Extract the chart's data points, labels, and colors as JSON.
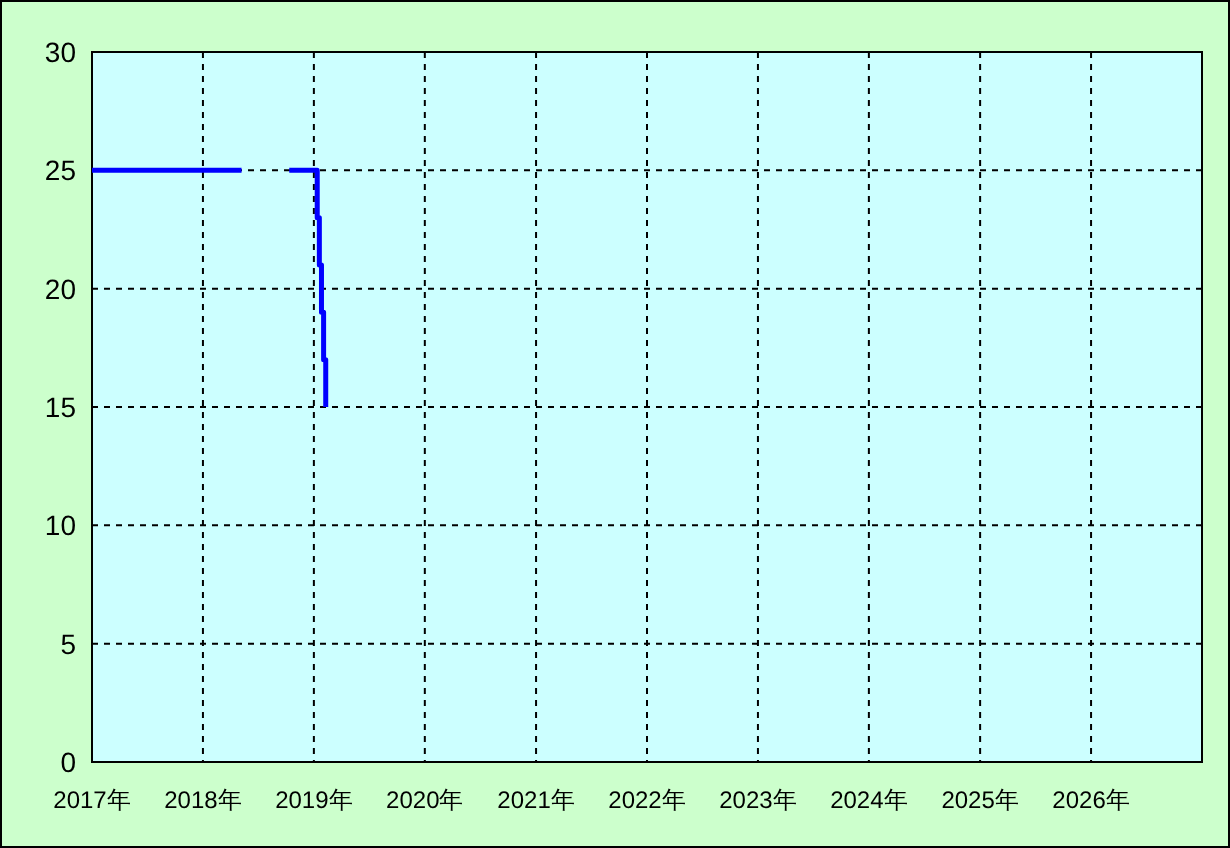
{
  "chart_data": {
    "type": "step",
    "series": [
      {
        "color": "#0000ff",
        "x": [
          "2017-01-01",
          "2018-05-08"
        ],
        "values": [
          25,
          25
        ]
      },
      {
        "color": "#0000ff",
        "x": [
          "2018-10-12",
          "2019-01-12",
          "2019-01-19",
          "2019-01-26",
          "2019-02-02",
          "2019-02-09"
        ],
        "values": [
          25,
          23,
          21,
          19,
          17,
          15
        ]
      }
    ],
    "xlim": [
      "2017-01-01",
      "2027-01-01"
    ],
    "xticks": [
      {
        "value": "2017-01-01",
        "label": "2017年"
      },
      {
        "value": "2018-01-01",
        "label": "2018年"
      },
      {
        "value": "2019-01-01",
        "label": "2019年"
      },
      {
        "value": "2020-01-01",
        "label": "2020年"
      },
      {
        "value": "2021-01-01",
        "label": "2021年"
      },
      {
        "value": "2022-01-01",
        "label": "2022年"
      },
      {
        "value": "2023-01-01",
        "label": "2023年"
      },
      {
        "value": "2024-01-01",
        "label": "2024年"
      },
      {
        "value": "2025-01-01",
        "label": "2025年"
      },
      {
        "value": "2026-01-01",
        "label": "2026年"
      }
    ],
    "ylim": [
      0,
      30
    ],
    "yticks": [
      0,
      5,
      10,
      15,
      20,
      25,
      30
    ],
    "grid": true,
    "marker": "none",
    "line_style": "solid"
  }
}
